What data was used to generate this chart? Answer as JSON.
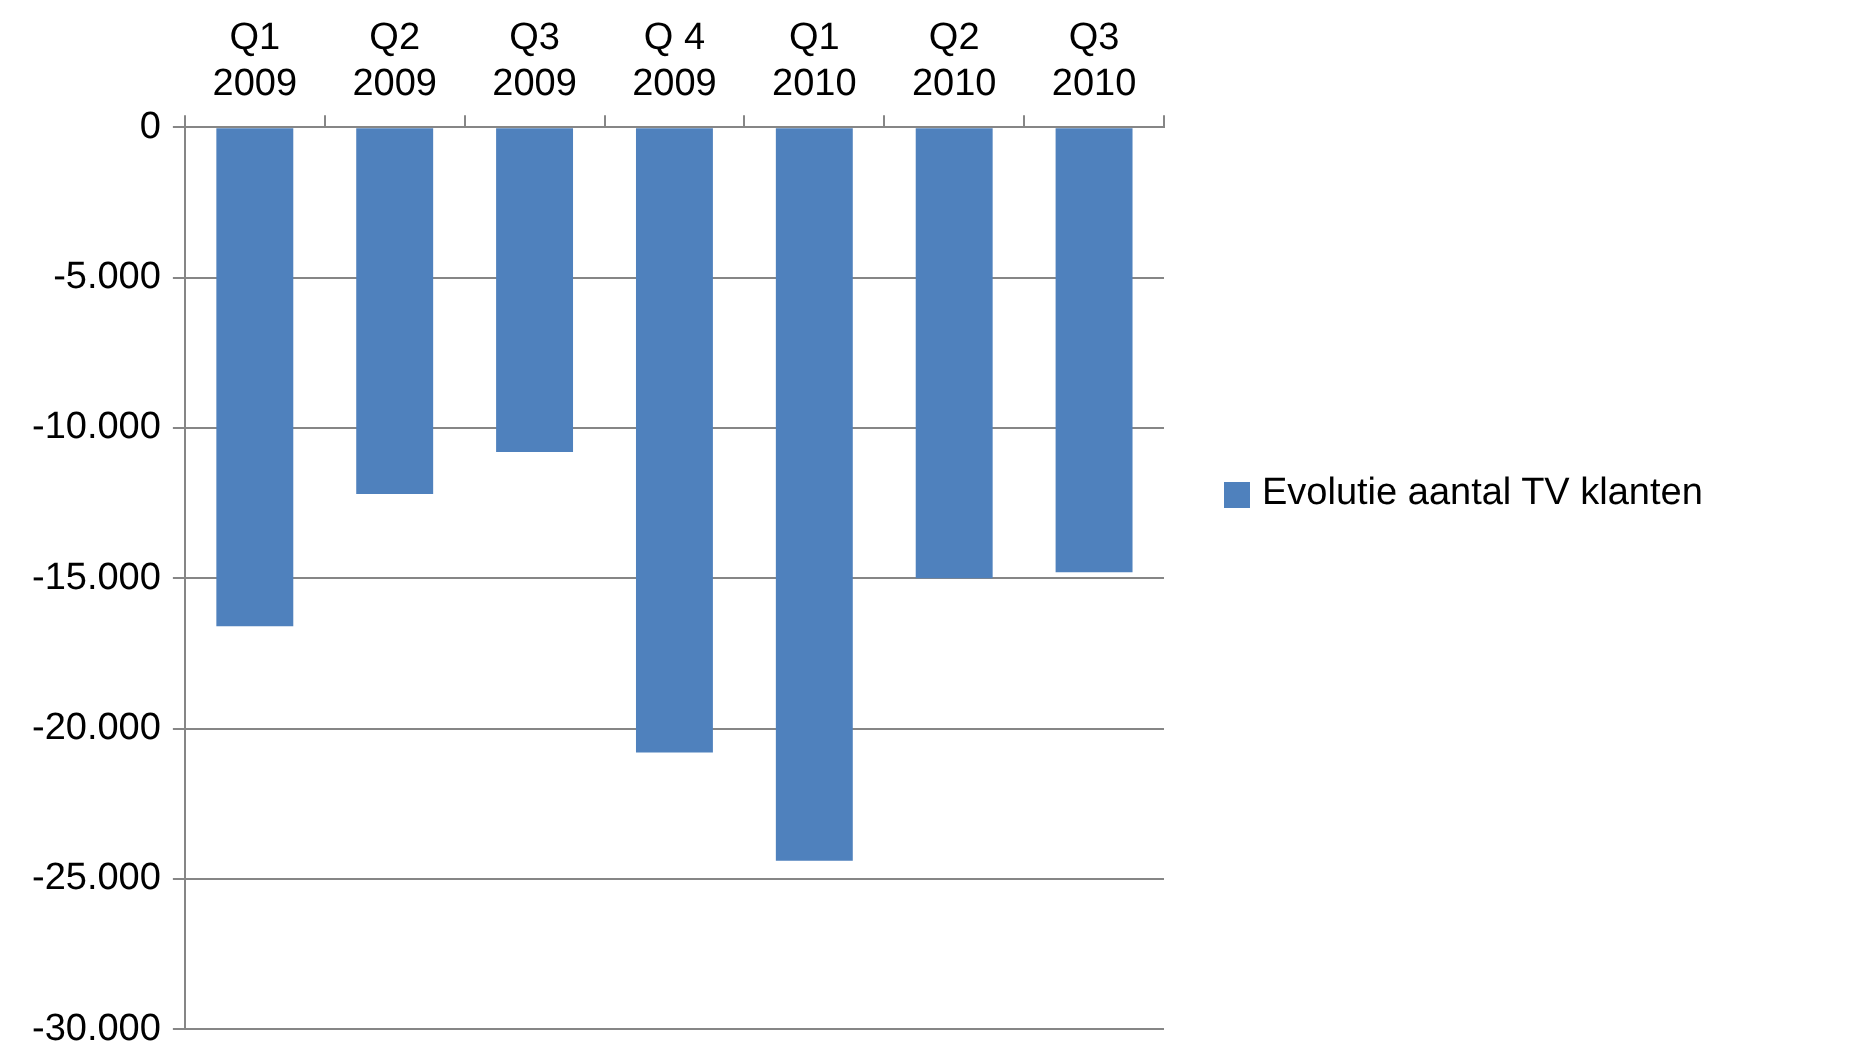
{
  "chart_data": {
    "type": "bar",
    "categories": [
      "Q1\n2009",
      "Q2\n2009",
      "Q3\n2009",
      "Q 4\n2009",
      "Q1\n2010",
      "Q2\n2010",
      "Q3\n2010"
    ],
    "series": [
      {
        "name": "Evolutie aantal TV klanten",
        "color": "#4f81bd",
        "values": [
          -16600,
          -12200,
          -10800,
          -20800,
          -24400,
          -15000,
          -14800
        ]
      }
    ],
    "ylim": [
      -30000,
      0
    ],
    "yticks": [
      {
        "value": -30000,
        "label": "-30.000"
      },
      {
        "value": -25000,
        "label": "-25.000"
      },
      {
        "value": -20000,
        "label": "-20.000"
      },
      {
        "value": -15000,
        "label": "-15.000"
      },
      {
        "value": -10000,
        "label": "-10.000"
      },
      {
        "value": -5000,
        "label": "-5.000"
      },
      {
        "value": 0,
        "label": "0"
      }
    ],
    "grid": "y",
    "legend": "right"
  }
}
